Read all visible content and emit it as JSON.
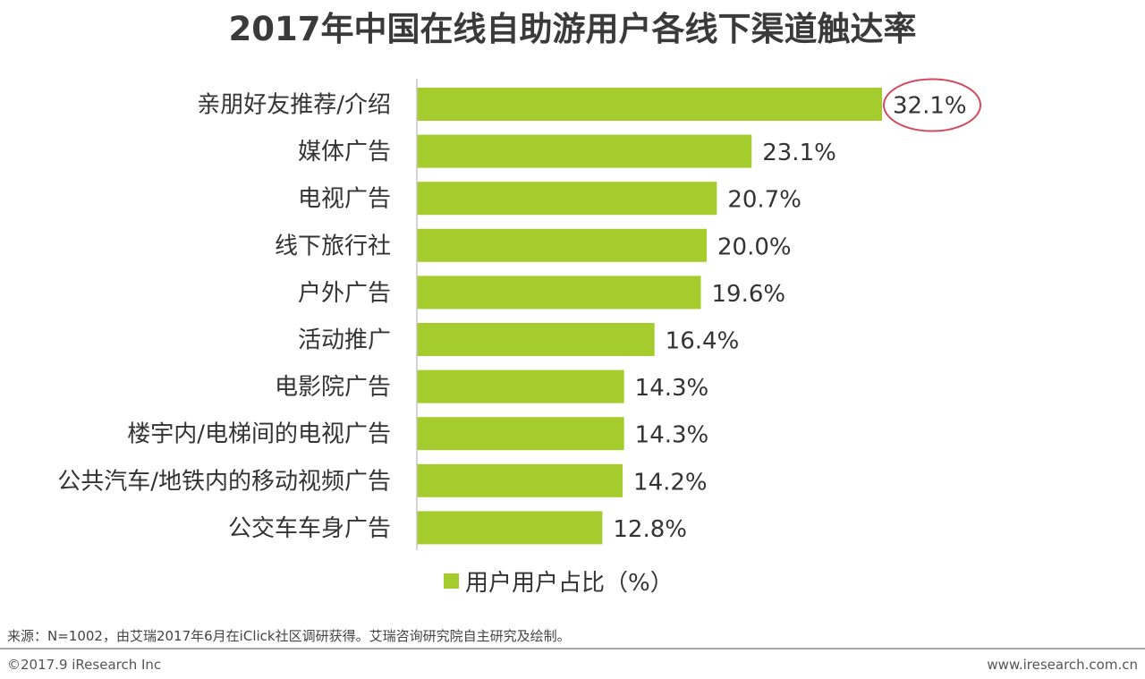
{
  "chart_data": {
    "type": "bar",
    "orientation": "horizontal",
    "title": "2017年中国在线自助游用户各线下渠道触达率",
    "categories": [
      "亲朋好友推荐/介绍",
      "媒体广告",
      "电视广告",
      "线下旅行社",
      "户外广告",
      "活动推广",
      "电影院广告",
      "楼宇内/电梯间的电视广告",
      "公共汽车/地铁内的移动视频广告",
      "公交车车身广告"
    ],
    "series": [
      {
        "name": "用户用户占比（%）",
        "values": [
          32.1,
          23.1,
          20.7,
          20.0,
          19.6,
          16.4,
          14.3,
          14.3,
          14.2,
          12.8
        ],
        "labels": [
          "32.1%",
          "23.1%",
          "20.7%",
          "20.0%",
          "19.6%",
          "16.4%",
          "14.3%",
          "14.3%",
          "14.2%",
          "12.8%"
        ]
      }
    ],
    "xlim": [
      0,
      35
    ],
    "grid": false,
    "legend_position": "bottom",
    "highlight_index": 0,
    "bar_color": "#a4cc2c",
    "highlight_color": "#d24a5c"
  },
  "footer": {
    "source": "来源：N=1002，由艾瑞2017年6月在iClick社区调研获得。艾瑞咨询研究院自主研究及绘制。",
    "copyright": "©2017.9 iResearch Inc",
    "website": "www.iresearch.com.cn"
  }
}
